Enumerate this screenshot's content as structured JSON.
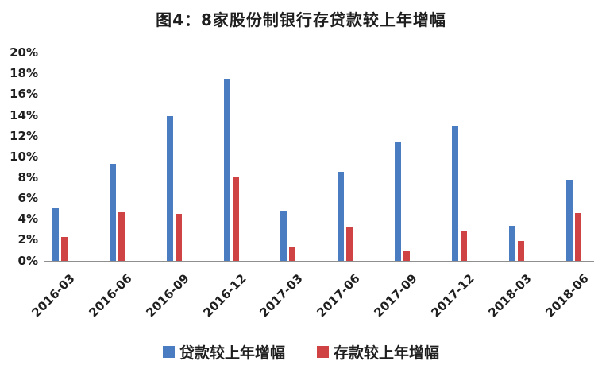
{
  "title": "图4：8家股份制银行存贷款较上年增幅",
  "colors": {
    "loan_bar": "#4a7cc2",
    "deposit_bar": "#cf4345",
    "axis_line": "#8f8f8f",
    "text": "#1f1f1f",
    "background": "#ffffff"
  },
  "chart_data": {
    "type": "bar",
    "title": "图4：8家股份制银行存贷款较上年增幅",
    "categories": [
      "2016-03",
      "2016-06",
      "2016-09",
      "2016-12",
      "2017-03",
      "2017-06",
      "2017-09",
      "2017-12",
      "2018-03",
      "2018-06"
    ],
    "series": [
      {
        "name": "贷款较上年增幅",
        "color": "#4a7cc2",
        "values": [
          5.1,
          9.3,
          13.9,
          17.5,
          4.8,
          8.6,
          11.5,
          13.0,
          3.4,
          7.8
        ]
      },
      {
        "name": "存款较上年增幅",
        "color": "#cf4345",
        "values": [
          2.3,
          4.7,
          4.5,
          8.0,
          1.4,
          3.3,
          1.0,
          2.9,
          1.9,
          4.6
        ]
      }
    ],
    "xlabel": "",
    "ylabel": "",
    "ylim": [
      0,
      20
    ],
    "y_tick_step": 2,
    "y_tick_suffix": "%",
    "grid": false,
    "legend_position": "bottom"
  },
  "legend": {
    "items": [
      {
        "label": "贷款较上年增幅",
        "color": "#4a7cc2"
      },
      {
        "label": "存款较上年增幅",
        "color": "#cf4345"
      }
    ]
  }
}
